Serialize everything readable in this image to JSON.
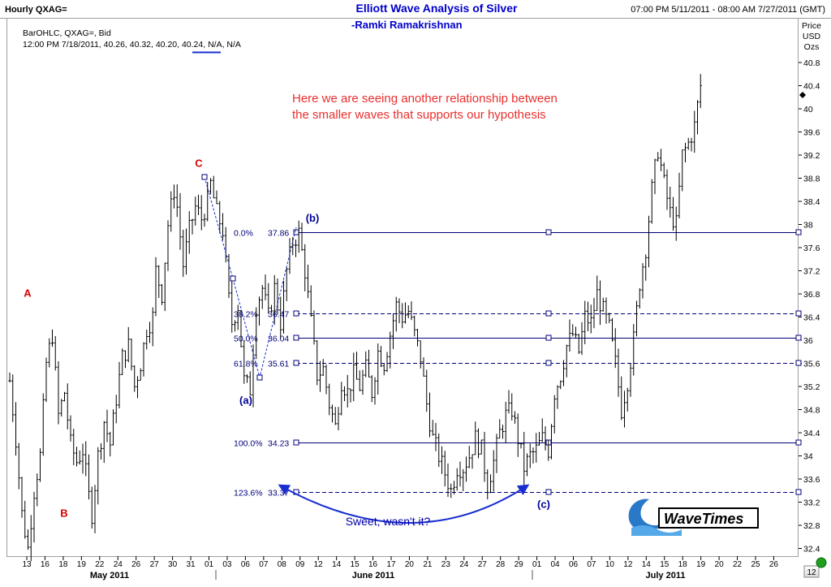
{
  "header": {
    "timeframe": "Hourly QXAG=",
    "title": "Elliott Wave Analysis of Silver",
    "author": "-Ramki Ramakrishnan",
    "range": "07:00 PM 5/11/2011 - 08:00 AM 7/27/2011 (GMT)"
  },
  "info": {
    "series_label": "BarOHLC, QXAG=, Bid",
    "ohlc_line": "12:00 PM 7/18/2011, 40.26, 40.32, 40.20, 40.24, N/A, N/A"
  },
  "axis_title": [
    "Price",
    "USD",
    "Ozs"
  ],
  "annotation": {
    "line1": "Here we are seeing another relationship between",
    "line2": "the smaller waves that supports our hypothesis"
  },
  "callout": "Sweet, wasn't it?",
  "logo_text": "WaveTimes",
  "scroll_number": "12",
  "colors": {
    "bars": "#000000",
    "fib_lines": "#00007a",
    "wave_labels_red": "#d80000",
    "wave_labels_blue": "#000099",
    "title": "#0000cc",
    "annotation": "#e8302e"
  },
  "chart_data": {
    "type": "bar",
    "subtype": "ohlc",
    "ylim": [
      32.2,
      41.4
    ],
    "y_ticks": [
      32.4,
      32.8,
      33.2,
      33.6,
      34,
      34.4,
      34.8,
      35.2,
      35.6,
      36,
      36.4,
      36.8,
      37.2,
      37.6,
      38,
      38.4,
      38.8,
      39.2,
      39.6,
      40,
      40.4,
      40.8
    ],
    "x_ticks": [
      "13",
      "16",
      "18",
      "19",
      "22",
      "24",
      "26",
      "27",
      "30",
      "31",
      "01",
      "03",
      "06",
      "07",
      "08",
      "09",
      "12",
      "14",
      "15",
      "16",
      "17",
      "20",
      "21",
      "23",
      "24",
      "27",
      "28",
      "29",
      "01",
      "04",
      "06",
      "07",
      "10",
      "12",
      "14",
      "15",
      "18",
      "19",
      "20",
      "22",
      "25",
      "26"
    ],
    "month_labels": [
      "May 2011",
      "June 2011",
      "July 2011"
    ],
    "grid": false,
    "price_series": [
      [
        0,
        35.3
      ],
      [
        2,
        34.3
      ],
      [
        4,
        33.0
      ],
      [
        6,
        32.4
      ],
      [
        8,
        33.4
      ],
      [
        10,
        34.0
      ],
      [
        12,
        35.6
      ],
      [
        14,
        36.1
      ],
      [
        16,
        34.7
      ],
      [
        18,
        35.1
      ],
      [
        20,
        34.2
      ],
      [
        22,
        33.9
      ],
      [
        24,
        34.1
      ],
      [
        26,
        33.3
      ],
      [
        27,
        33.0
      ],
      [
        29,
        34.0
      ],
      [
        31,
        34.6
      ],
      [
        33,
        34.2
      ],
      [
        35,
        35.0
      ],
      [
        37,
        35.7
      ],
      [
        39,
        35.9
      ],
      [
        41,
        35.2
      ],
      [
        43,
        35.6
      ],
      [
        45,
        36.2
      ],
      [
        47,
        36.4
      ],
      [
        48,
        37.2
      ],
      [
        50,
        36.8
      ],
      [
        52,
        38.0
      ],
      [
        54,
        38.6
      ],
      [
        55,
        38.3
      ],
      [
        57,
        37.3
      ],
      [
        59,
        37.9
      ],
      [
        61,
        38.3
      ],
      [
        63,
        38.1
      ],
      [
        65,
        38.4
      ],
      [
        66,
        38.7
      ],
      [
        68,
        38.2
      ],
      [
        70,
        37.9
      ],
      [
        72,
        36.7
      ],
      [
        73,
        36.3
      ],
      [
        75,
        36.6
      ],
      [
        77,
        35.3
      ],
      [
        79,
        35.15
      ],
      [
        81,
        36.6
      ],
      [
        83,
        36.9
      ],
      [
        85,
        36.4
      ],
      [
        87,
        36.9
      ],
      [
        89,
        36.3
      ],
      [
        91,
        37.2
      ],
      [
        93,
        37.7
      ],
      [
        95,
        37.85
      ],
      [
        97,
        37.2
      ],
      [
        99,
        36.3
      ],
      [
        101,
        35.4
      ],
      [
        103,
        35.5
      ],
      [
        105,
        34.9
      ],
      [
        107,
        34.5
      ],
      [
        109,
        35.3
      ],
      [
        111,
        35.1
      ],
      [
        113,
        35.4
      ],
      [
        115,
        35.2
      ],
      [
        117,
        35.5
      ],
      [
        119,
        35.1
      ],
      [
        121,
        35.8
      ],
      [
        123,
        35.6
      ],
      [
        125,
        36.1
      ],
      [
        127,
        36.6
      ],
      [
        129,
        36.4
      ],
      [
        131,
        36.5
      ],
      [
        133,
        36.1
      ],
      [
        135,
        35.7
      ],
      [
        137,
        34.9
      ],
      [
        139,
        34.3
      ],
      [
        141,
        34.0
      ],
      [
        143,
        33.7
      ],
      [
        145,
        33.4
      ],
      [
        147,
        33.8
      ],
      [
        149,
        33.8
      ],
      [
        151,
        34.0
      ],
      [
        153,
        34.3
      ],
      [
        155,
        34.1
      ],
      [
        157,
        33.5
      ],
      [
        159,
        33.9
      ],
      [
        161,
        34.4
      ],
      [
        163,
        34.7
      ],
      [
        165,
        34.8
      ],
      [
        167,
        34.3
      ],
      [
        169,
        33.8
      ],
      [
        171,
        34.0
      ],
      [
        173,
        34.1
      ],
      [
        175,
        34.3
      ],
      [
        177,
        34.1
      ],
      [
        179,
        35.1
      ],
      [
        181,
        35.4
      ],
      [
        183,
        35.9
      ],
      [
        185,
        36.1
      ],
      [
        187,
        35.8
      ],
      [
        189,
        36.4
      ],
      [
        191,
        36.3
      ],
      [
        193,
        36.8
      ],
      [
        195,
        36.5
      ],
      [
        197,
        36.2
      ],
      [
        199,
        35.6
      ],
      [
        201,
        34.8
      ],
      [
        203,
        35.3
      ],
      [
        205,
        36.0
      ],
      [
        207,
        37.0
      ],
      [
        209,
        37.6
      ],
      [
        211,
        38.6
      ],
      [
        213,
        39.3
      ],
      [
        215,
        38.7
      ],
      [
        217,
        38.2
      ],
      [
        219,
        38.0
      ],
      [
        221,
        39.2
      ],
      [
        223,
        39.4
      ],
      [
        225,
        39.7
      ],
      [
        227,
        40.4
      ]
    ],
    "fibonacci": [
      {
        "level": "0.0%",
        "price": 37.86
      },
      {
        "level": "38.2%",
        "price": 36.47
      },
      {
        "level": "50.0%",
        "price": 36.04
      },
      {
        "level": "61.8%",
        "price": 35.61
      },
      {
        "level": "100.0%",
        "price": 34.23
      },
      {
        "level": "123.6%",
        "price": 33.37
      }
    ],
    "wave_labels": [
      {
        "label": "A",
        "price": 36.75
      },
      {
        "label": "B",
        "price": 32.95
      },
      {
        "label": "C",
        "price": 39.0
      },
      {
        "label": "(a)",
        "price": 34.9
      },
      {
        "label": "(b)",
        "price": 38.05
      },
      {
        "label": "(c)",
        "price": 33.1
      }
    ]
  }
}
